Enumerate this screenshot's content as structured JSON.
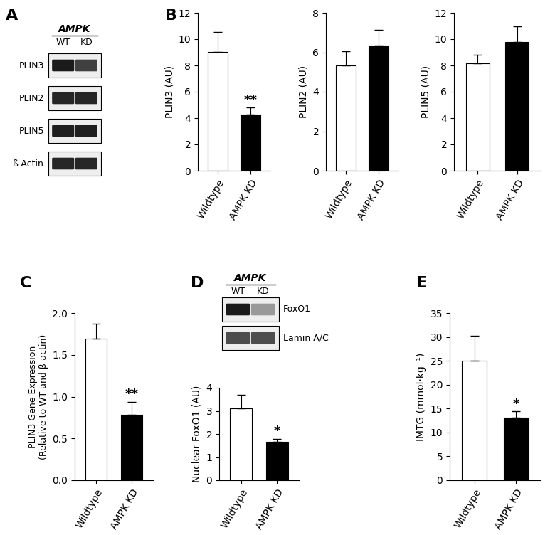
{
  "panel_labels": [
    "A",
    "B",
    "C",
    "D",
    "E"
  ],
  "blots": [
    {
      "header": "AMPK",
      "lanes": [
        "WT",
        "KD"
      ],
      "rows": [
        "PLIN3",
        "PLIN2",
        "PLIN5",
        "ß-Actin"
      ]
    },
    {
      "header": "AMPK",
      "lanes": [
        "WT",
        "KD"
      ],
      "rows": [
        "FoxO1",
        "Lamin A/C"
      ]
    }
  ],
  "chart_data": [
    {
      "type": "bar",
      "ylabel": "PLIN3 (AU)",
      "categories": [
        "Wildtype",
        "AMPK KD"
      ],
      "values": [
        9.05,
        4.25
      ],
      "errors": [
        1.5,
        0.55
      ],
      "colors": [
        "#ffffff",
        "#000000"
      ],
      "ylim": [
        0,
        12
      ],
      "yticks": [
        0,
        2,
        4,
        6,
        8,
        10,
        12
      ],
      "annotations": [
        {
          "text": "**",
          "category": "AMPK KD"
        }
      ]
    },
    {
      "type": "bar",
      "ylabel": "PLIN2 (AU)",
      "categories": [
        "Wildtype",
        "AMPK KD"
      ],
      "values": [
        5.35,
        6.35
      ],
      "errors": [
        0.7,
        0.8
      ],
      "colors": [
        "#ffffff",
        "#000000"
      ],
      "ylim": [
        0,
        8
      ],
      "yticks": [
        0,
        2,
        4,
        6,
        8
      ],
      "annotations": []
    },
    {
      "type": "bar",
      "ylabel": "PLIN5 (AU)",
      "categories": [
        "Wildtype",
        "AMPK KD"
      ],
      "values": [
        8.15,
        9.8
      ],
      "errors": [
        0.65,
        1.2
      ],
      "colors": [
        "#ffffff",
        "#000000"
      ],
      "ylim": [
        0,
        12
      ],
      "yticks": [
        0,
        2,
        4,
        6,
        8,
        10,
        12
      ],
      "annotations": []
    },
    {
      "type": "bar",
      "ylabel": "PLIN3 Gene Expression\n(Relative to WT and β-actin)",
      "categories": [
        "Wildtype",
        "AMPK KD"
      ],
      "values": [
        1.69,
        0.78
      ],
      "errors": [
        0.18,
        0.16
      ],
      "colors": [
        "#ffffff",
        "#000000"
      ],
      "ylim": [
        0,
        2
      ],
      "yticks": [
        {
          "value": 0,
          "label": "0.0"
        },
        0.5,
        {
          "value": 1,
          "label": "1.0"
        },
        1.5,
        {
          "value": 2,
          "label": "2.0"
        }
      ],
      "annotations": [
        {
          "text": "**",
          "category": "AMPK KD"
        }
      ]
    },
    {
      "type": "bar",
      "ylabel": "Nuclear FoxO1 (AU)",
      "categories": [
        "Wildtype",
        "AMPK KD"
      ],
      "values": [
        3.1,
        1.65
      ],
      "errors": [
        0.6,
        0.15
      ],
      "colors": [
        "#ffffff",
        "#000000"
      ],
      "ylim": [
        0,
        4
      ],
      "yticks": [
        0,
        1,
        2,
        3,
        4
      ],
      "annotations": [
        {
          "text": "*",
          "category": "AMPK KD"
        }
      ]
    },
    {
      "type": "bar",
      "ylabel": "IMTG (mmol·kg⁻¹)",
      "categories": [
        "Wildtype",
        "AMPK KD"
      ],
      "values": [
        25,
        13.1
      ],
      "errors": [
        5.3,
        1.3
      ],
      "colors": [
        "#ffffff",
        "#000000"
      ],
      "ylim": [
        0,
        35
      ],
      "yticks": [
        0,
        5,
        10,
        15,
        20,
        25,
        30,
        35
      ],
      "annotations": [
        {
          "text": "*",
          "category": "AMPK KD"
        }
      ]
    }
  ]
}
